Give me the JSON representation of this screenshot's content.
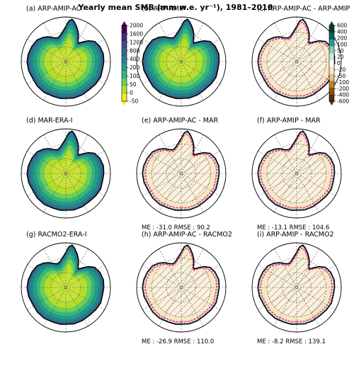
{
  "title": "Yearly mean SMB (mm w.e. yr⁻¹), 1981–2010",
  "colors": {
    "absolute_ramp": [
      "#fde725",
      "#b5de2b",
      "#6ece58",
      "#35b779",
      "#1f9e89",
      "#26828e",
      "#31688e",
      "#3e4989",
      "#482878",
      "#440154"
    ],
    "difference_ramp": [
      "#543005",
      "#8c510a",
      "#bf812d",
      "#dfc27d",
      "#f6e8c3",
      "#ffffff",
      "#c7eae5",
      "#80cdc1",
      "#35978f",
      "#01665e",
      "#003c30"
    ],
    "positive_contour": "#e7298a",
    "negative_contour": "#3b6fd8",
    "coast": "#000000"
  },
  "chart_data": [
    {
      "type": "heatmap",
      "title": "(a) ARP-AMIP-AC",
      "kind": "absolute"
    },
    {
      "type": "heatmap",
      "title": "(b) ARP-AMIP",
      "kind": "absolute"
    },
    {
      "type": "heatmap",
      "title": "(c) ARP-AMIP-AC - ARP-AMIP",
      "kind": "difference"
    },
    {
      "type": "heatmap",
      "title": "(d) MAR-ERA-I",
      "kind": "absolute"
    },
    {
      "type": "heatmap",
      "title": "(e) ARP-AMIP-AC - MAR",
      "kind": "difference",
      "stats": "ME : -31.0   RMSE : 90.2"
    },
    {
      "type": "heatmap",
      "title": "(f) ARP-AMIP - MAR",
      "kind": "difference",
      "stats": "ME : -13.1   RMSE : 104.6"
    },
    {
      "type": "heatmap",
      "title": "(g) RACMO2-ERA-I",
      "kind": "absolute"
    },
    {
      "type": "heatmap",
      "title": "(h) ARP-AMIP-AC - RACMO2",
      "kind": "difference",
      "stats": "ME : -26.9   RMSE : 110.0"
    },
    {
      "type": "heatmap",
      "title": "(i) ARP-AMIP - RACMO2",
      "kind": "difference",
      "stats": "ME : -8.2    RMSE : 139.1"
    }
  ],
  "colorbars": {
    "absolute": {
      "ticks": [
        "2000",
        "1600",
        "1200",
        "800",
        "400",
        "200",
        "100",
        "50",
        "0",
        "-50"
      ]
    },
    "difference": {
      "ticks": [
        "600",
        "400",
        "200",
        "100",
        "50",
        "20",
        "0",
        "-20",
        "-50",
        "-100",
        "-200",
        "-400",
        "-600"
      ]
    }
  }
}
